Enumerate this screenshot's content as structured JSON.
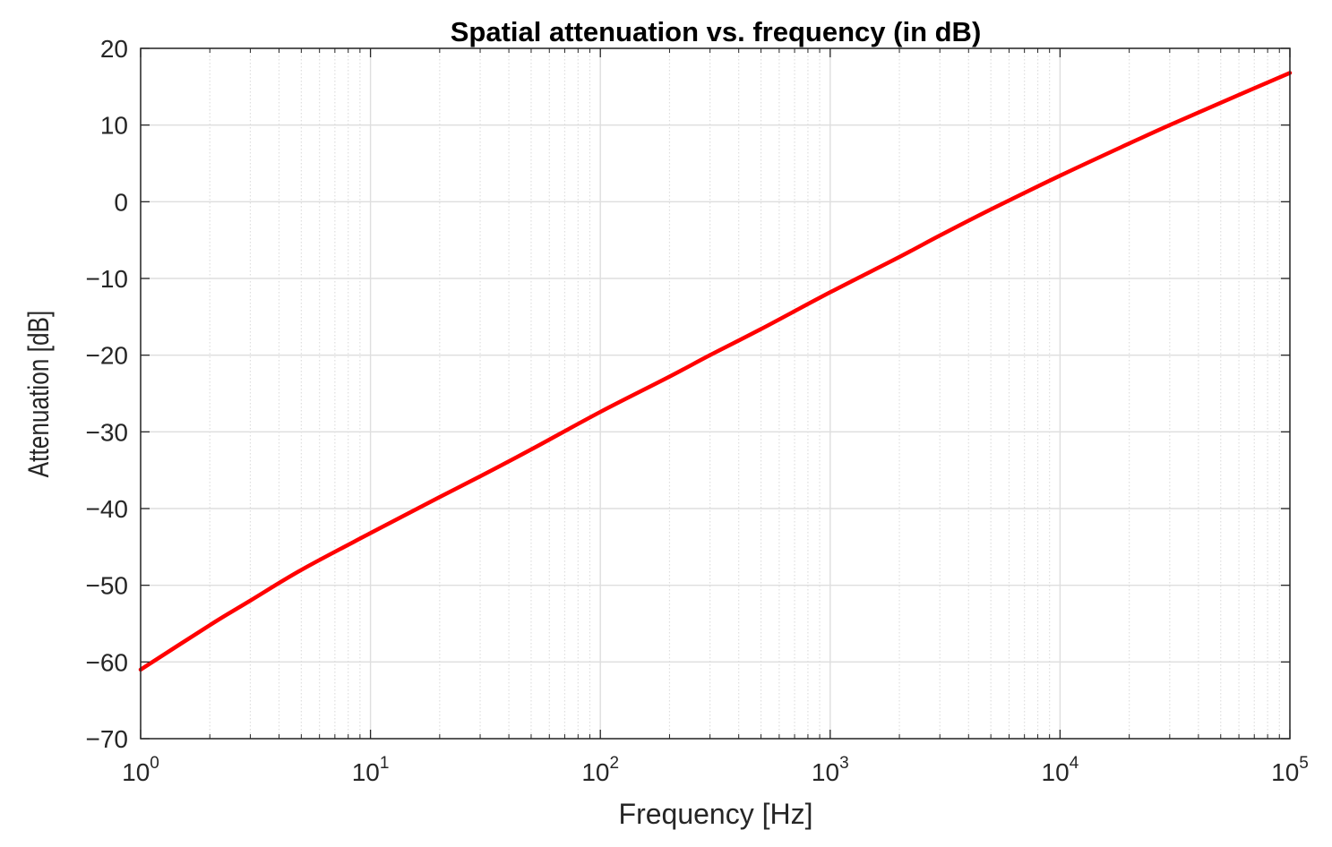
{
  "chart_data": {
    "type": "line",
    "title": "Spatial attenuation vs. frequency (in dB)",
    "xlabel": "Frequency [Hz]",
    "ylabel": "Attenuation [dB]",
    "xscale": "log",
    "xlim": [
      1,
      100000
    ],
    "ylim": [
      -70,
      20
    ],
    "grid": true,
    "x_ticks": [
      {
        "base": "10",
        "exp": "0"
      },
      {
        "base": "10",
        "exp": "1"
      },
      {
        "base": "10",
        "exp": "2"
      },
      {
        "base": "10",
        "exp": "3"
      },
      {
        "base": "10",
        "exp": "4"
      },
      {
        "base": "10",
        "exp": "5"
      }
    ],
    "y_ticks": [
      "20",
      "10",
      "0",
      "−10",
      "−20",
      "−30",
      "−40",
      "−50",
      "−60",
      "−70"
    ],
    "series": [
      {
        "color": "#ff0000",
        "x": [
          1,
          2,
          3,
          5,
          10,
          20,
          30,
          50,
          100,
          200,
          300,
          500,
          1000,
          2000,
          3000,
          5000,
          10000,
          20000,
          30000,
          50000,
          100000
        ],
        "y": [
          -61,
          -55.2,
          -52,
          -48,
          -43.2,
          -38.5,
          -35.8,
          -32.3,
          -27.4,
          -22.8,
          -20,
          -16.6,
          -11.8,
          -7.2,
          -4.4,
          -1,
          3.4,
          7.6,
          10,
          12.9,
          16.8
        ]
      }
    ]
  },
  "colors": {
    "line": "#ff0000",
    "grid": "#dedede",
    "axis": "#262626"
  }
}
